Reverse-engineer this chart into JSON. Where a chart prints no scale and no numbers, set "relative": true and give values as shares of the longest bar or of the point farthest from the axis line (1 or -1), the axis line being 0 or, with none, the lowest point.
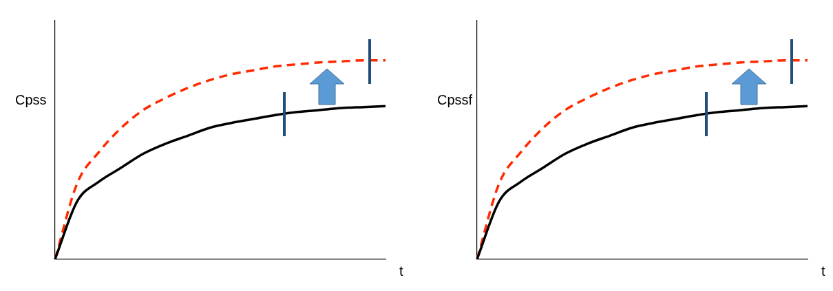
{
  "chart_data": [
    {
      "type": "line",
      "relative": true,
      "xlabel": "t",
      "ylabel": "Cpss",
      "categories": [
        null,
        null,
        null,
        null,
        null,
        null,
        null,
        null,
        null,
        null,
        null,
        null,
        null,
        null,
        null,
        null
      ],
      "marker": "none",
      "grid": false,
      "legend": false,
      "series": [
        {
          "color": "#000000",
          "line_style": "solid",
          "values": [
            0,
            0.29,
            0.39,
            0.46,
            0.53,
            0.58,
            0.62,
            0.66,
            0.685,
            0.705,
            0.725,
            0.74,
            0.75,
            0.76,
            0.765,
            0.77
          ]
        },
        {
          "color": "#ff2a00",
          "line_style": "dashed",
          "values": [
            0,
            0.38,
            0.54,
            0.66,
            0.75,
            0.81,
            0.86,
            0.9,
            0.93,
            0.95,
            0.97,
            0.98,
            0.99,
            0.995,
            1,
            1
          ]
        }
      ]
    },
    {
      "type": "line",
      "relative": true,
      "xlabel": "t",
      "ylabel": "Cpssf",
      "categories": [
        null,
        null,
        null,
        null,
        null,
        null,
        null,
        null,
        null,
        null,
        null,
        null,
        null,
        null,
        null,
        null
      ],
      "marker": "none",
      "grid": false,
      "legend": false,
      "series": [
        {
          "color": "#000000",
          "line_style": "solid",
          "values": [
            0,
            0.29,
            0.39,
            0.46,
            0.53,
            0.58,
            0.62,
            0.66,
            0.685,
            0.705,
            0.725,
            0.74,
            0.75,
            0.76,
            0.765,
            0.77
          ]
        },
        {
          "color": "#ff2a00",
          "line_style": "dashed",
          "values": [
            0,
            0.38,
            0.54,
            0.66,
            0.75,
            0.81,
            0.86,
            0.9,
            0.93,
            0.95,
            0.97,
            0.98,
            0.99,
            0.995,
            1,
            1
          ]
        }
      ]
    }
  ]
}
